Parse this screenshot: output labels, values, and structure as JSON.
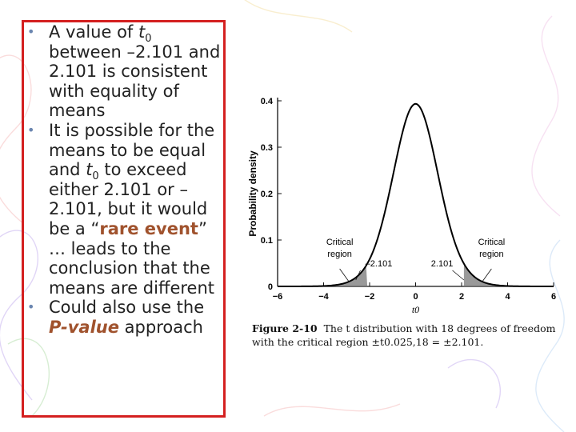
{
  "bullets": [
    {
      "pre": "A value of ",
      "var": "t",
      "sub": "0",
      "post": " between –2.101 and 2.101 is consistent with equality of means"
    },
    {
      "pre": "It is possible for the means to be equal and ",
      "var": "t",
      "sub": "0",
      "mid": " to exceed either 2.101 or –2.101, but it would be a “",
      "highlight": "rare event",
      "post": "” … leads to the conclusion that the means are different"
    },
    {
      "pre": "Could also use the ",
      "highlight": "P-value",
      "post": " approach"
    }
  ],
  "figure": {
    "caption_number": "Figure 2-10",
    "caption_text": "The t distribution with 18 degrees of freedom with the critical region ±t0.025,18 = ±2.101.",
    "chart_data": {
      "type": "line",
      "xlabel": "t0",
      "ylabel": "Probability density",
      "xlim": [
        -6,
        6
      ],
      "ylim": [
        0,
        0.4
      ],
      "xticks": [
        "-6",
        "-4",
        "-2",
        "0",
        "2",
        "4",
        "6"
      ],
      "yticks": [
        "0",
        "0.1",
        "0.2",
        "0.3",
        "0.4"
      ],
      "degrees_of_freedom": 18,
      "critical_value": 2.101,
      "annotations": {
        "left_region": "Critical region",
        "right_region": "Critical region",
        "left_value": "-2.101",
        "right_value": "2.101"
      }
    }
  }
}
